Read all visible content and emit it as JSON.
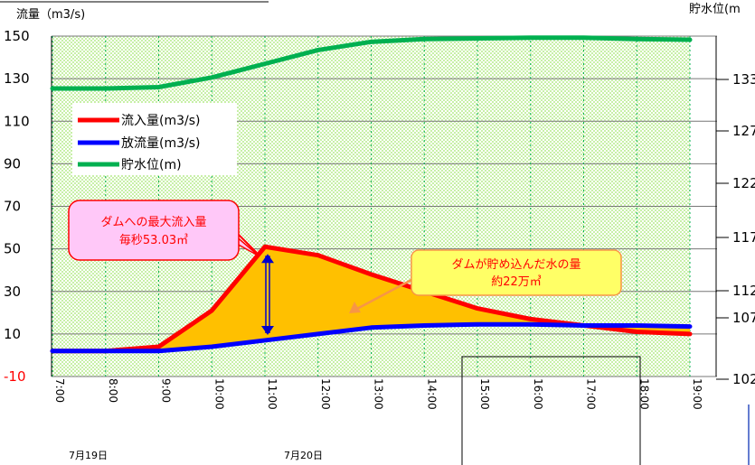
{
  "chart_data": {
    "type": "line",
    "y_left_label": "流量（m3/s)",
    "y_right_label": "貯水位(m",
    "y_left_ticks": [
      "150",
      "130",
      "110",
      "90",
      "70",
      "50",
      "30",
      "10",
      "-10"
    ],
    "y_left_range": [
      -10,
      150
    ],
    "y_right_ticks": [
      "133",
      "127",
      "122",
      "117",
      "112",
      "107",
      "102"
    ],
    "x": [
      "7:00",
      "8:00",
      "9:00",
      "10:00",
      "11:00",
      "12:00",
      "13:00",
      "14:00",
      "15:00",
      "16:00",
      "17:00",
      "18:00",
      "19:00"
    ],
    "dates": [
      "7月19日",
      "7月20日"
    ],
    "series": [
      {
        "name": "流入量(m3/s)",
        "color": "#ff0000",
        "values": [
          2,
          2,
          4,
          21,
          51,
          47,
          38,
          30,
          22,
          17,
          14,
          11,
          10
        ]
      },
      {
        "name": "放流量(m3/s)",
        "color": "#0000ff",
        "values": [
          2,
          2,
          2,
          4,
          7,
          10,
          13,
          14,
          14.5,
          14.5,
          14,
          14,
          13.5
        ]
      },
      {
        "name": "貯水位(m)",
        "color": "#00b050",
        "values": [
          127.4,
          127.4,
          127.6,
          129,
          131,
          133,
          134.2,
          134.6,
          134.7,
          134.8,
          134.8,
          134.6,
          134.5
        ]
      }
    ],
    "grid": true,
    "legend_position": "upper-left",
    "annotations": [
      {
        "lines": [
          "ダムへの最大流入量",
          "毎秒53.03㎥"
        ]
      },
      {
        "lines": [
          "ダムが貯め込んだ水の量",
          "約22万㎥"
        ]
      }
    ]
  }
}
